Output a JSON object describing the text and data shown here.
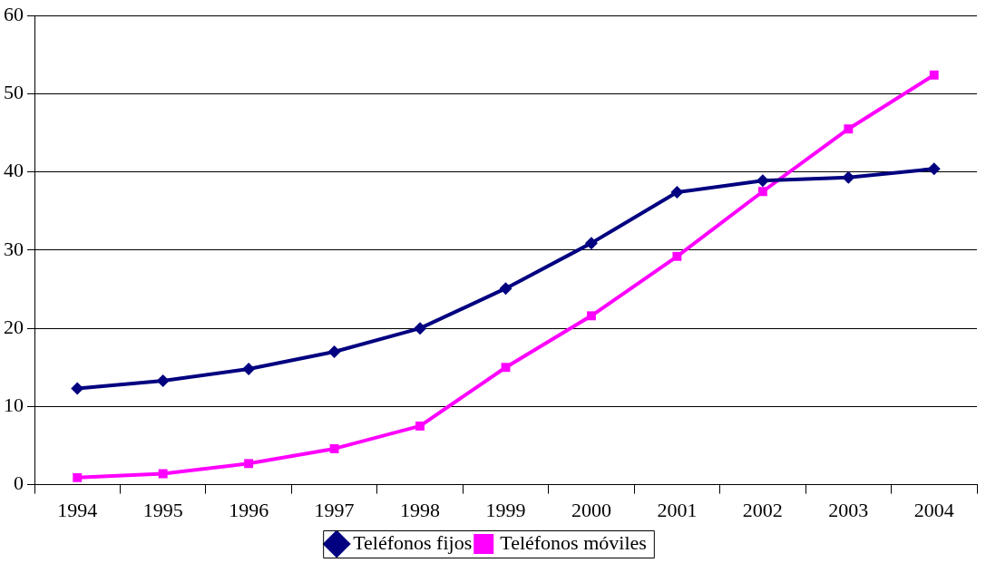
{
  "chart_data": {
    "type": "line",
    "categories": [
      "1994",
      "1995",
      "1996",
      "1997",
      "1998",
      "1999",
      "2000",
      "2001",
      "2002",
      "2003",
      "2004"
    ],
    "series": [
      {
        "name": "Teléfonos fijos",
        "color": "#000080",
        "marker": "diamond",
        "values": [
          12.3,
          13.3,
          14.8,
          17.0,
          20.0,
          25.1,
          30.9,
          37.4,
          38.9,
          39.3,
          40.4
        ]
      },
      {
        "name": "Teléfonos móviles",
        "color": "#ff00ff",
        "marker": "square",
        "values": [
          0.9,
          1.4,
          2.7,
          4.6,
          7.5,
          15.0,
          21.6,
          29.2,
          37.5,
          45.5,
          52.4
        ]
      }
    ],
    "ylim": [
      0,
      60
    ],
    "yticks": [
      0,
      10,
      20,
      30,
      40,
      50,
      60
    ],
    "grid": "y",
    "legend": "bottom",
    "line_style": "solid"
  }
}
